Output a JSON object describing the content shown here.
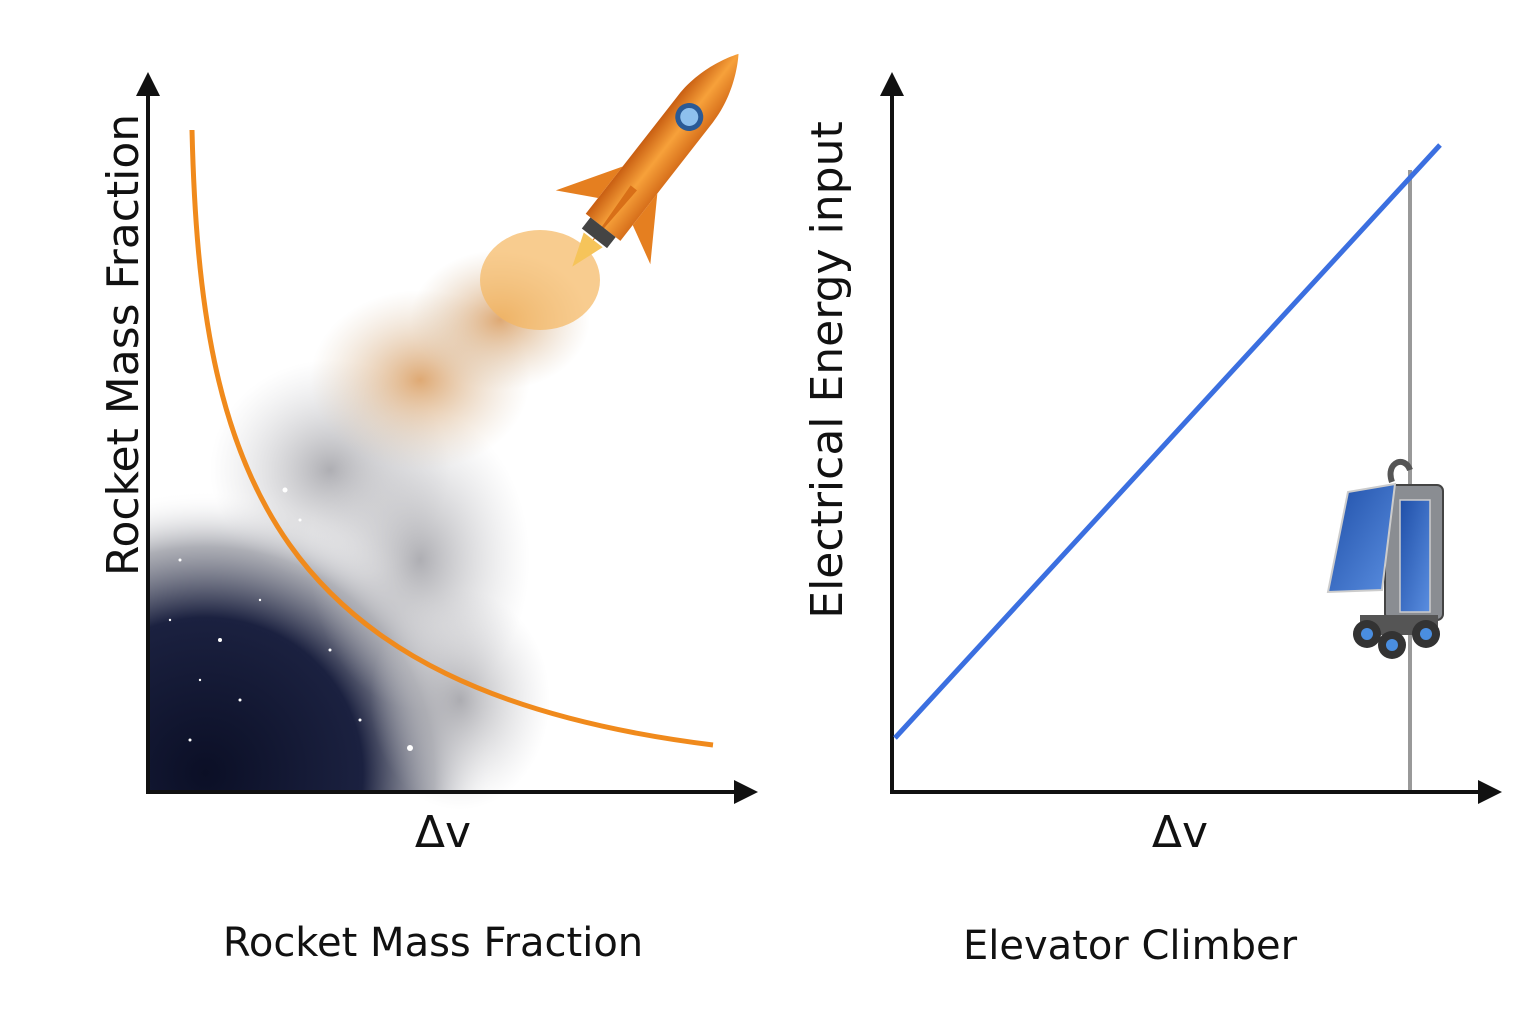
{
  "left_panel": {
    "y_label": "Rocket Mass Fraction",
    "x_label": "Δv",
    "caption": "Rocket Mass Fraction"
  },
  "right_panel": {
    "y_label": "Electrical Energy input",
    "x_label": "Δv",
    "caption": "Elevator Climber"
  }
}
